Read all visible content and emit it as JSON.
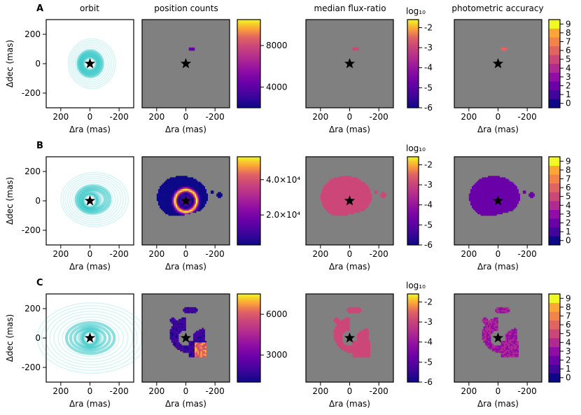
{
  "figure": {
    "column_titles": [
      "orbit",
      "position counts",
      "median flux-ratio",
      "photometric accuracy"
    ]
  },
  "rows": [
    {
      "label": "A",
      "orbit": {
        "ylabel": "Δdec (mas)",
        "xlabel": "Δra (mas)",
        "yticks": [
          "200",
          "0",
          "-200"
        ],
        "xticks": [
          "200",
          "0",
          "-200"
        ]
      },
      "counts": {
        "xlabel": "Δra (mas)",
        "xticks": [
          "200",
          "0",
          "-200"
        ],
        "cbar_ticks": [
          "8000",
          "4000"
        ]
      },
      "flux": {
        "xlabel": "Δra (mas)",
        "xticks": [
          "200",
          "0",
          "-200"
        ],
        "cbar_label": "",
        "cbar_ticks": [
          "-2",
          "-3",
          "-4",
          "-5",
          "-6"
        ]
      },
      "accuracy": {
        "xlabel": "Δra (mas)",
        "xticks": [
          "200",
          "0",
          "-200"
        ],
        "cbar_ticks": [
          "9",
          "8",
          "7",
          "6",
          "5",
          "4",
          "3",
          "2",
          "1",
          "0"
        ]
      }
    },
    {
      "label": "B",
      "orbit": {
        "ylabel": "Δdec (mas)",
        "xlabel": "Δra (mas)",
        "yticks": [
          "200",
          "0",
          "-200"
        ],
        "xticks": [
          "200",
          "0",
          "-200"
        ]
      },
      "counts": {
        "xlabel": "Δra (mas)",
        "xticks": [
          "200",
          "0",
          "-200"
        ],
        "cbar_ticks": [
          "4.0×10⁴",
          "2.0×10⁴"
        ]
      },
      "flux": {
        "xlabel": "Δra (mas)",
        "xticks": [
          "200",
          "0",
          "-200"
        ],
        "cbar_label": "log₁₀",
        "cbar_ticks": [
          "-2",
          "-3",
          "-4",
          "-5",
          "-6"
        ]
      },
      "accuracy": {
        "xlabel": "Δra (mas)",
        "xticks": [
          "200",
          "0",
          "-200"
        ],
        "cbar_ticks": [
          "9",
          "8",
          "7",
          "6",
          "5",
          "4",
          "3",
          "2",
          "1",
          "0"
        ]
      }
    },
    {
      "label": "C",
      "orbit": {
        "ylabel": "Δdec (mas)",
        "xlabel": "Δra (mas)",
        "yticks": [
          "200",
          "0",
          "-200"
        ],
        "xticks": [
          "200",
          "0",
          "-200"
        ]
      },
      "counts": {
        "xlabel": "Δra (mas)",
        "xticks": [
          "200",
          "0",
          "-200"
        ],
        "cbar_ticks": [
          "6000",
          "3000"
        ]
      },
      "flux": {
        "xlabel": "Δra (mas)",
        "xticks": [
          "200",
          "0",
          "-200"
        ],
        "cbar_label": "log₁₀",
        "cbar_ticks": [
          "-2",
          "-3",
          "-4",
          "-5",
          "-6"
        ]
      },
      "accuracy": {
        "xlabel": "Δra (mas)",
        "xticks": [
          "200",
          "0",
          "-200"
        ],
        "cbar_ticks": [
          "9",
          "8",
          "7",
          "6",
          "5",
          "4",
          "3",
          "2",
          "1",
          "0"
        ]
      }
    }
  ],
  "chart_data": {
    "type": "heatmap",
    "panels": [
      "orbit",
      "position counts",
      "median flux-ratio",
      "photometric accuracy"
    ],
    "xlim_mas": [
      300,
      -300
    ],
    "ylim_mas": [
      -300,
      300
    ],
    "xticks": [
      200,
      0,
      -200
    ],
    "yticks": [
      200,
      0,
      -200
    ],
    "colormap": "plasma",
    "background_color": "#808080",
    "orbit_color": "#2ec4c4",
    "counts_colorbar_range": [
      {
        "row": "A",
        "min": 2000,
        "max": 10500
      },
      {
        "row": "B",
        "min": 3000,
        "max": 53000
      },
      {
        "row": "C",
        "min": 1000,
        "max": 7500
      }
    ],
    "flux_colorbar_range_log10": [
      -6,
      -1.6
    ],
    "accuracy_colorbar_range": [
      0,
      9
    ],
    "median_flux_ratio_log10": {
      "A": -3.1,
      "B": -3.3,
      "C": -3.5
    },
    "photometric_accuracy": {
      "A": 6,
      "B": 2,
      "C": 3
    }
  }
}
